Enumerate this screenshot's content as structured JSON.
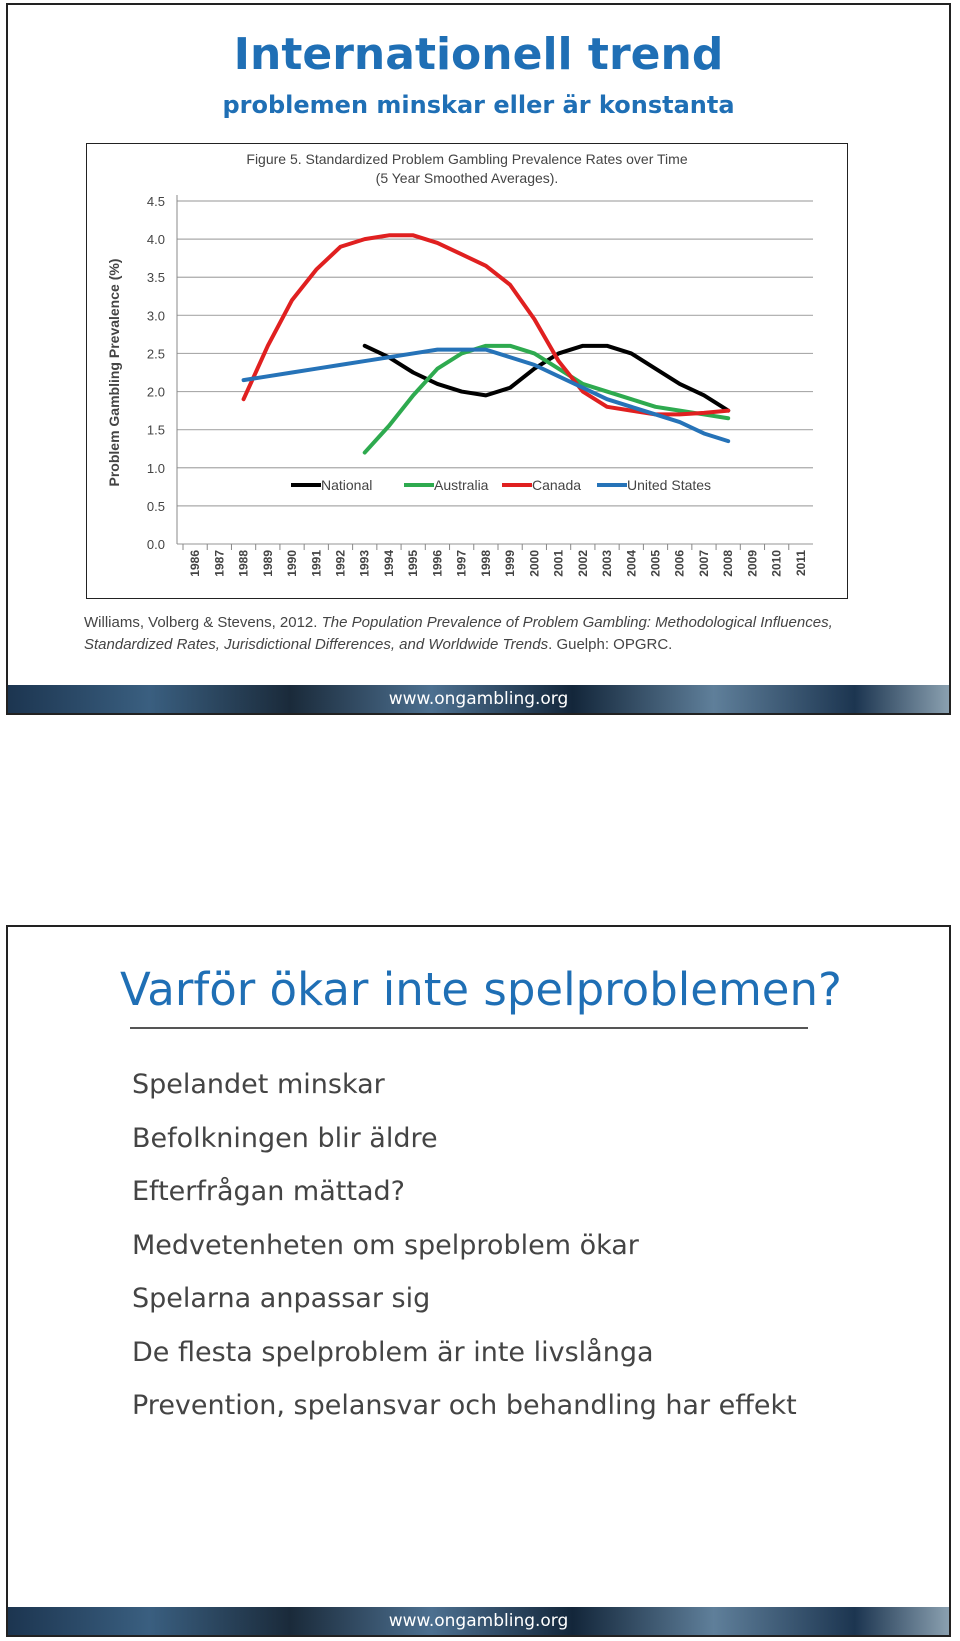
{
  "slide1": {
    "title": "Internationell trend",
    "subtitle": "problemen minskar eller är konstanta",
    "citation": {
      "authors": "Williams, Volberg & Stevens, 2012.",
      "work": "The Population Prevalence of Problem Gambling: Methodological Influences, Standardized Rates, Jurisdictional Differences, and Worldwide Trends",
      "publisher": ". Guelph: OPGRC."
    },
    "footer": "www.ongambling.org"
  },
  "chart_data": {
    "type": "line",
    "title": "Figure 5. Standardized Problem Gambling Prevalence Rates over Time",
    "subtitle": "(5 Year Smoothed Averages).",
    "y_label": "Problem Gambling Prevalence (%)",
    "categories": [
      "1986",
      "1987",
      "1988",
      "1989",
      "1990",
      "1991",
      "1992",
      "1993",
      "1994",
      "1995",
      "1996",
      "1997",
      "1998",
      "1999",
      "2000",
      "2001",
      "2002",
      "2003",
      "2004",
      "2005",
      "2006",
      "2007",
      "2008",
      "2009",
      "2010",
      "2011"
    ],
    "series": [
      {
        "name": "National",
        "color": "#000000",
        "values": [
          null,
          null,
          null,
          null,
          null,
          null,
          null,
          2.6,
          2.45,
          2.25,
          2.1,
          2.0,
          1.95,
          2.05,
          2.3,
          2.5,
          2.6,
          2.6,
          2.5,
          2.3,
          2.1,
          1.95,
          1.75,
          null,
          null,
          null
        ]
      },
      {
        "name": "Australia",
        "color": "#2eaa4f",
        "values": [
          null,
          null,
          null,
          null,
          null,
          null,
          null,
          1.2,
          1.55,
          1.95,
          2.3,
          2.5,
          2.6,
          2.6,
          2.5,
          2.3,
          2.1,
          2.0,
          1.9,
          1.8,
          1.75,
          1.7,
          1.65,
          null,
          null,
          null
        ]
      },
      {
        "name": "Canada",
        "color": "#e02020",
        "values": [
          null,
          null,
          1.9,
          2.6,
          3.2,
          3.6,
          3.9,
          4.0,
          4.05,
          4.05,
          3.95,
          3.8,
          3.65,
          3.4,
          2.95,
          2.4,
          2.0,
          1.8,
          1.75,
          1.7,
          1.7,
          1.72,
          1.75,
          null,
          null,
          null
        ]
      },
      {
        "name": "United States",
        "color": "#2673b8",
        "values": [
          null,
          null,
          2.15,
          2.2,
          2.25,
          2.3,
          2.35,
          2.4,
          2.45,
          2.5,
          2.55,
          2.55,
          2.55,
          2.45,
          2.35,
          2.2,
          2.05,
          1.9,
          1.8,
          1.7,
          1.6,
          1.45,
          1.35,
          null,
          null,
          null
        ]
      }
    ],
    "ylim": [
      0,
      4.5
    ],
    "yticks": [
      {
        "value": 0,
        "label": "0.0"
      },
      0.5,
      {
        "value": 1,
        "label": "1.0"
      },
      1.5,
      {
        "value": 2,
        "label": "2.0"
      },
      2.5,
      {
        "value": 3,
        "label": "3.0"
      },
      3.5,
      {
        "value": 4,
        "label": "4.0"
      },
      4.5
    ],
    "grid": true,
    "legend": "bottom"
  },
  "slide2": {
    "title": "Varför ökar inte spelproblemen?",
    "items": [
      "Spelandet minskar",
      "Befolkningen blir äldre",
      "Efterfrågan mättad?",
      "Medvetenheten om spelproblem ökar",
      "Spelarna anpassar sig",
      "De flesta spelproblem är inte livslånga",
      "Prevention, spelansvar och behandling har effekt"
    ],
    "footer": "www.ongambling.org"
  }
}
